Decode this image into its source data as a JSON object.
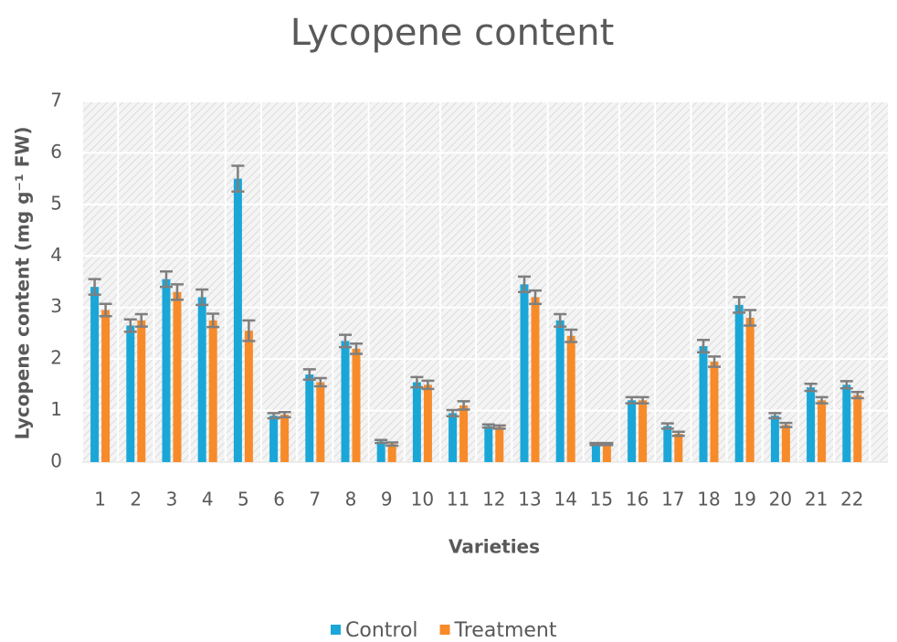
{
  "chart_data": {
    "type": "bar",
    "title": "Lycopene content",
    "x_label": "Varieties",
    "y_label": "Lycopene content (mg g⁻¹ FW)",
    "categories": [
      "1",
      "2",
      "3",
      "4",
      "5",
      "6",
      "7",
      "8",
      "9",
      "10",
      "11",
      "12",
      "13",
      "14",
      "15",
      "16",
      "17",
      "18",
      "19",
      "20",
      "21",
      "22"
    ],
    "series": [
      {
        "name": "Control",
        "color": "#1aa7d8",
        "values": [
          3.4,
          2.65,
          3.55,
          3.2,
          5.5,
          0.9,
          1.7,
          2.35,
          0.4,
          1.55,
          0.95,
          0.7,
          3.45,
          2.75,
          0.35,
          1.2,
          0.7,
          2.25,
          3.05,
          0.9,
          1.45,
          1.5
        ],
        "errors": [
          0.15,
          0.12,
          0.15,
          0.15,
          0.25,
          0.05,
          0.1,
          0.12,
          0.03,
          0.1,
          0.06,
          0.03,
          0.15,
          0.12,
          0.02,
          0.06,
          0.05,
          0.12,
          0.15,
          0.05,
          0.07,
          0.07
        ]
      },
      {
        "name": "Treatment",
        "color": "#f78b2a",
        "values": [
          2.95,
          2.75,
          3.3,
          2.75,
          2.55,
          0.92,
          1.55,
          2.2,
          0.35,
          1.5,
          1.1,
          0.68,
          3.2,
          2.45,
          0.35,
          1.2,
          0.55,
          1.95,
          2.8,
          0.72,
          1.2,
          1.3
        ],
        "errors": [
          0.12,
          0.12,
          0.15,
          0.13,
          0.2,
          0.05,
          0.08,
          0.1,
          0.03,
          0.08,
          0.08,
          0.03,
          0.13,
          0.12,
          0.02,
          0.06,
          0.04,
          0.1,
          0.15,
          0.04,
          0.06,
          0.06
        ]
      }
    ],
    "ylim": [
      0,
      7
    ],
    "yticks": [
      0,
      1,
      2,
      3,
      4,
      5,
      6,
      7
    ],
    "grid": true,
    "legend": "bottom"
  }
}
